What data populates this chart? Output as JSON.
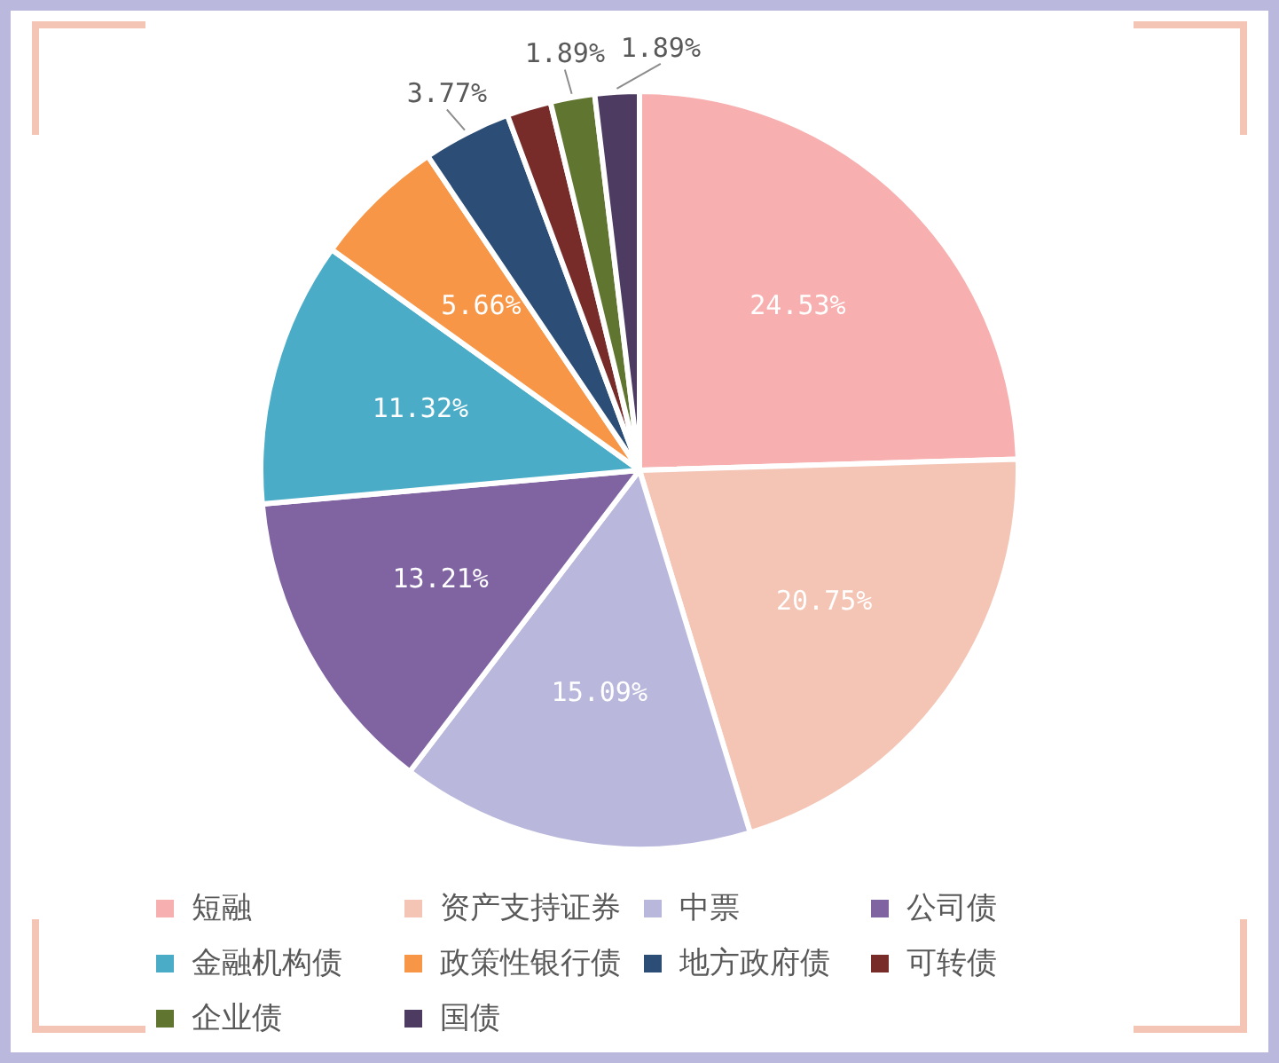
{
  "chart_data": {
    "type": "pie",
    "categories": [
      "短融",
      "资产支持证券",
      "中票",
      "公司债",
      "金融机构债",
      "政策性银行债",
      "地方政府债",
      "可转债",
      "企业债",
      "国债"
    ],
    "values": [
      24.53,
      20.75,
      15.09,
      13.21,
      11.32,
      5.66,
      3.77,
      1.89,
      1.89,
      1.89
    ],
    "colors": [
      "#f7afaf",
      "#f4c5b5",
      "#b9b8dc",
      "#8064a2",
      "#4aacc6",
      "#f79646",
      "#2c4d75",
      "#772c2a",
      "#5f7530",
      "#4d3b62"
    ],
    "value_labels": [
      "24.53%",
      "20.75%",
      "15.09%",
      "13.21%",
      "11.32%",
      "5.66%",
      "3.77%",
      null,
      "1.89%",
      "1.89%"
    ],
    "legend": "bottom"
  }
}
